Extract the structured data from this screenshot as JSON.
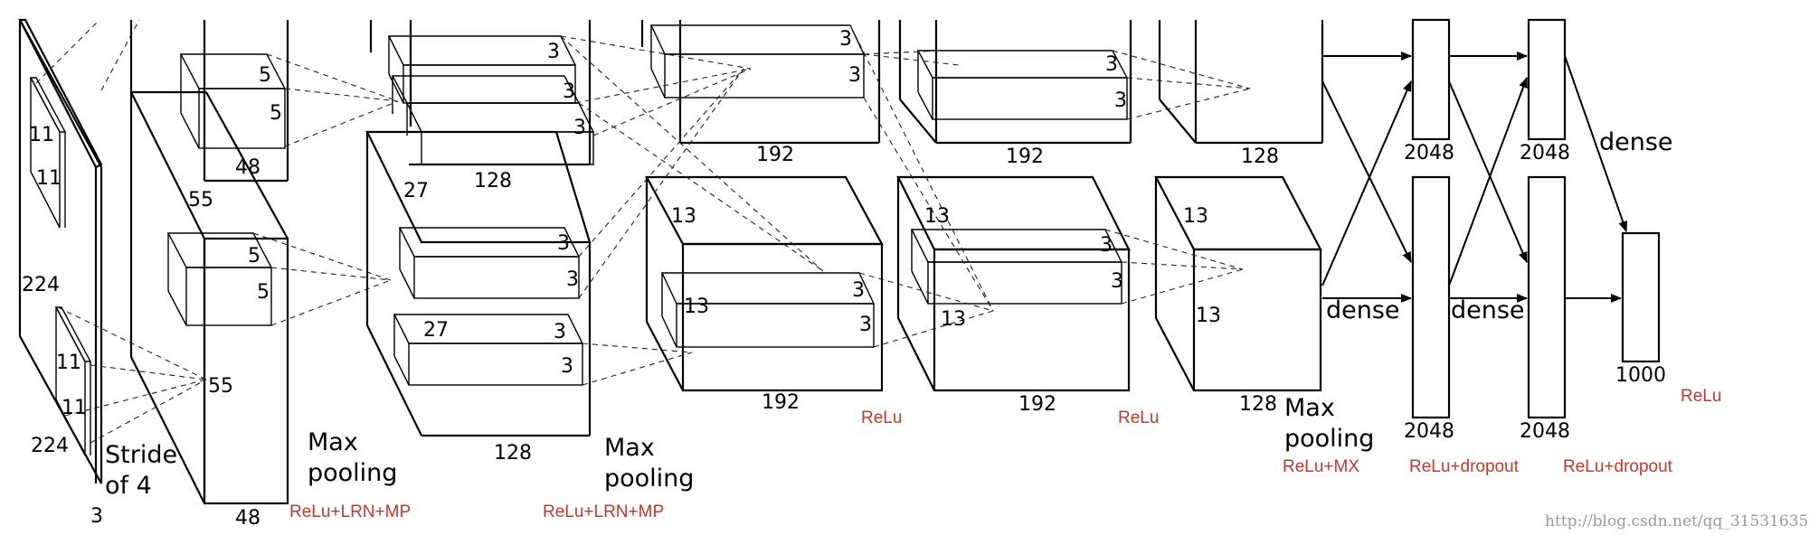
{
  "input": {
    "height": "224",
    "width": "224",
    "depth": "3",
    "kernel_top_h": "11",
    "kernel_top_w": "11",
    "kernel_bot_h": "11",
    "kernel_bot_w": "11",
    "stride_line1": "Stride",
    "stride_line2": "of 4"
  },
  "conv1": {
    "size_top": "55",
    "size_mid": "55",
    "depth_top": "48",
    "depth_bottom": "48",
    "kernel_top_a": "5",
    "kernel_top_b": "5",
    "kernel_bot_a": "5",
    "kernel_bot_b": "5",
    "pool_line1": "Max",
    "pool_line2": "pooling",
    "activation": "ReLu+LRN+MP"
  },
  "conv2": {
    "size_a": "27",
    "size_b": "27",
    "depth_top": "128",
    "depth_bottom": "128",
    "kernel_labels": [
      "3",
      "3",
      "3",
      "3",
      "3",
      "3",
      "3"
    ],
    "pool_line1": "Max",
    "pool_line2": "pooling",
    "activation": "ReLu+LRN+MP"
  },
  "conv3": {
    "size_a": "13",
    "size_b": "13",
    "depth_top": "192",
    "depth_bottom": "192",
    "kernel_labels": [
      "3",
      "3",
      "3",
      "3"
    ],
    "activation": "ReLu"
  },
  "conv4": {
    "size_a": "13",
    "size_b": "13",
    "depth_top": "192",
    "depth_bottom": "192",
    "kernel_labels": [
      "3",
      "3",
      "3",
      "3"
    ],
    "activation": "ReLu"
  },
  "conv5": {
    "size_a": "13",
    "size_b": "13",
    "depth_top": "128",
    "depth_bottom": "128",
    "pool_line1": "Max",
    "pool_line2": "pooling",
    "activation": "ReLu+MX"
  },
  "fc6": {
    "size_top": "2048",
    "size_bottom": "2048",
    "label": "dense",
    "activation": "ReLu+dropout"
  },
  "fc7": {
    "size_top": "2048",
    "size_bottom": "2048",
    "label": "dense",
    "activation": "ReLu+dropout"
  },
  "fc8": {
    "size": "1000",
    "label": "dense",
    "activation": "ReLu"
  },
  "watermark": "http://blog.csdn.net/qq_31531635"
}
